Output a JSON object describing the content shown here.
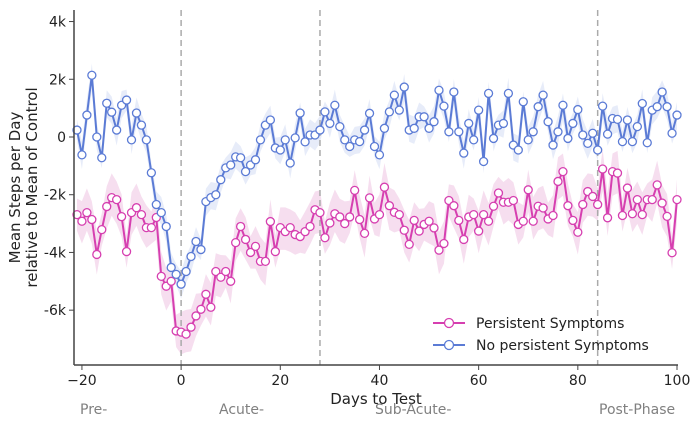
{
  "chart_data": {
    "type": "line",
    "title": "",
    "xlabel": "Days to Test",
    "ylabel": [
      "Mean Steps per Day",
      "relative to Mean of Control"
    ],
    "xlim": [
      -21.6,
      100.2
    ],
    "ylim": [
      -7.9,
      4.4
    ],
    "x_start": -21,
    "x_ticks": [
      -20,
      0,
      20,
      40,
      60,
      80,
      100
    ],
    "x_tick_labels": [
      "−20",
      "0",
      "20",
      "40",
      "60",
      "80",
      "100"
    ],
    "y_ticks": [
      4,
      2,
      0,
      -2,
      -4,
      -6
    ],
    "y_tick_labels": [
      "4k",
      "2k",
      "0",
      "-2k",
      "-4k",
      "-6k"
    ],
    "y_units": "thousands of steps",
    "phase_lines": [
      0,
      28,
      84
    ],
    "phases": [
      "Pre-",
      "Acute-",
      "Sub-Acute-",
      "Post-Phase"
    ],
    "grid": false,
    "legend_position": "bottom-right",
    "series": [
      {
        "name": "Persistent Symptoms",
        "color": "#d63fb0",
        "band_color": "#f3d3ea",
        "band_halfwidth": 0.7,
        "values": [
          -2.69,
          -2.92,
          -2.62,
          -2.86,
          -4.07,
          -3.21,
          -2.41,
          -2.1,
          -2.17,
          -2.76,
          -3.97,
          -2.62,
          -2.45,
          -2.69,
          -3.14,
          -3.14,
          -2.79,
          -4.83,
          -5.17,
          -5.0,
          -6.72,
          -6.76,
          -6.83,
          -6.59,
          -6.2,
          -5.97,
          -5.45,
          -5.9,
          -4.66,
          -4.86,
          -4.66,
          -5.0,
          -3.66,
          -3.1,
          -3.55,
          -4.0,
          -3.79,
          -4.31,
          -4.31,
          -2.93,
          -3.97,
          -3.14,
          -3.28,
          -3.14,
          -3.38,
          -3.45,
          -3.28,
          -3.1,
          -2.52,
          -2.62,
          -3.49,
          -2.98,
          -2.66,
          -2.77,
          -3.0,
          -2.77,
          -1.85,
          -2.86,
          -3.34,
          -2.11,
          -2.84,
          -2.69,
          -1.74,
          -2.38,
          -2.61,
          -2.69,
          -3.23,
          -3.72,
          -2.89,
          -3.26,
          -3.03,
          -2.92,
          -3.15,
          -3.92,
          -3.69,
          -2.2,
          -2.38,
          -2.89,
          -3.55,
          -2.77,
          -2.69,
          -3.26,
          -2.69,
          -2.92,
          -2.4,
          -1.94,
          -2.26,
          -2.26,
          -2.2,
          -3.03,
          -2.92,
          -1.83,
          -2.92,
          -2.4,
          -2.46,
          -2.84,
          -2.72,
          -1.54,
          -1.2,
          -2.38,
          -2.89,
          -3.3,
          -2.34,
          -1.89,
          -2.06,
          -2.34,
          -1.11,
          -2.8,
          -1.2,
          -1.25,
          -2.72,
          -1.77,
          -2.66,
          -2.17,
          -2.69,
          -2.17,
          -2.17,
          -1.66,
          -2.29,
          -2.75,
          -4.01,
          -2.17
        ]
      },
      {
        "name": "No persistent Symptoms",
        "color": "#5b7bd5",
        "band_color": "#dfe6f7",
        "band_halfwidth": 0.45,
        "values": [
          0.24,
          -0.62,
          0.76,
          2.14,
          0,
          -0.72,
          1.17,
          0.86,
          0.24,
          1.1,
          1.28,
          -0.1,
          0.83,
          0.41,
          -0.1,
          -1.24,
          -2.34,
          -2.62,
          -3.1,
          -4.52,
          -4.76,
          -5.1,
          -4.66,
          -4.14,
          -3.62,
          -3.9,
          -2.24,
          -2.1,
          -2.0,
          -1.48,
          -1.07,
          -0.97,
          -0.69,
          -0.72,
          -1.2,
          -0.97,
          -0.79,
          -0.1,
          0.41,
          0.59,
          -0.38,
          -0.45,
          -0.1,
          -0.9,
          -0.03,
          0.83,
          -0.17,
          0.07,
          0.07,
          0.24,
          0.87,
          0.47,
          1.1,
          0.36,
          -0.1,
          -0.33,
          -0.1,
          -0.16,
          0.24,
          0.82,
          -0.33,
          -0.62,
          0.3,
          0.87,
          1.45,
          0.93,
          1.73,
          0.24,
          0.3,
          0.7,
          0.7,
          0.3,
          0.53,
          1.62,
          1.07,
          0.18,
          1.56,
          0.18,
          -0.56,
          0.47,
          -0.1,
          0.93,
          -0.85,
          1.51,
          -0.05,
          0.41,
          0.47,
          1.51,
          -0.28,
          -0.45,
          1.22,
          -0.1,
          0.18,
          1.05,
          1.45,
          0.53,
          -0.28,
          0.18,
          1.1,
          -0.05,
          0.47,
          0.95,
          0.07,
          -0.22,
          0.13,
          -0.45,
          1.07,
          0.1,
          0.64,
          0.61,
          -0.16,
          0.59,
          -0.16,
          0.36,
          1.16,
          -0.2,
          0.93,
          1.05,
          1.56,
          1.05,
          0.13,
          0.76
        ]
      }
    ]
  }
}
